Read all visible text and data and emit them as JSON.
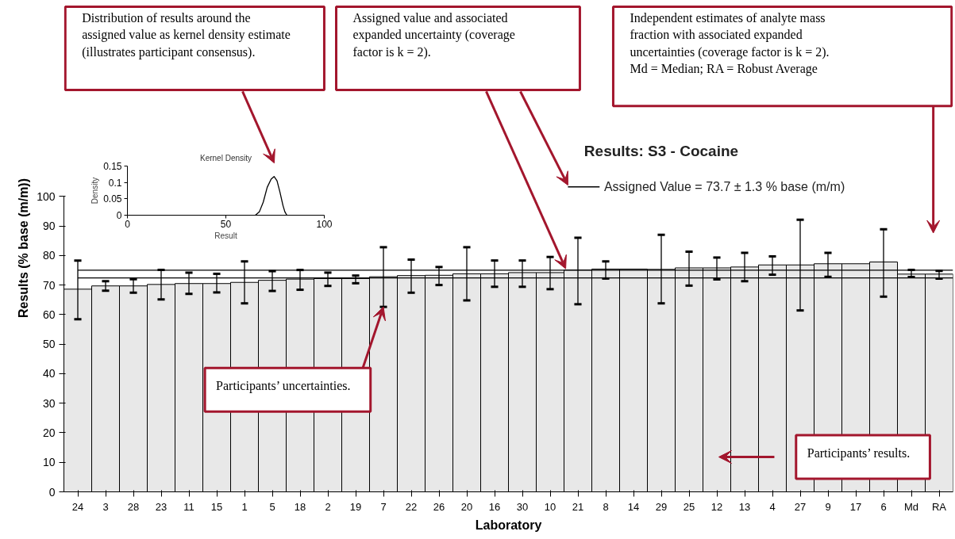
{
  "chart_data": [
    {
      "type": "bar",
      "title": "Results: S3 - Cocaine",
      "xlabel": "Laboratory",
      "ylabel": "Results (% base (m/m))",
      "categories": [
        "24",
        "3",
        "28",
        "23",
        "11",
        "15",
        "1",
        "5",
        "18",
        "2",
        "19",
        "7",
        "22",
        "26",
        "20",
        "16",
        "30",
        "10",
        "21",
        "8",
        "14",
        "29",
        "25",
        "12",
        "13",
        "4",
        "27",
        "9",
        "17",
        "6",
        "Md",
        "RA"
      ],
      "values": [
        68.6,
        69.7,
        69.7,
        70.2,
        70.5,
        70.5,
        70.9,
        71.6,
        72.0,
        72.2,
        72.2,
        72.8,
        73.2,
        73.3,
        73.8,
        73.8,
        74.2,
        74.2,
        75.1,
        75.4,
        75.4,
        75.3,
        75.8,
        75.8,
        76.1,
        76.8,
        76.8,
        77.2,
        77.2,
        77.8,
        73.7,
        73.7
      ],
      "errors": [
        [
          58.4,
          78.3
        ],
        [
          68.1,
          71.3
        ],
        [
          67.4,
          72.0
        ],
        [
          65.1,
          75.1
        ],
        [
          67.0,
          74.2
        ],
        [
          67.5,
          73.8
        ],
        [
          63.8,
          78.0
        ],
        [
          68.0,
          74.7
        ],
        [
          68.4,
          75.1
        ],
        [
          69.7,
          74.2
        ],
        [
          70.6,
          73.2
        ],
        [
          62.6,
          82.8
        ],
        [
          67.4,
          78.6
        ],
        [
          70.0,
          76.1
        ],
        [
          64.8,
          82.8
        ],
        [
          69.4,
          78.3
        ],
        [
          69.4,
          78.3
        ],
        [
          68.6,
          79.5
        ],
        [
          63.5,
          86.0
        ],
        [
          72.2,
          78.0
        ],
        null,
        [
          63.8,
          87.0
        ],
        [
          69.8,
          81.3
        ],
        [
          71.9,
          79.3
        ],
        [
          71.3,
          80.9
        ],
        [
          73.5,
          79.7
        ],
        [
          61.4,
          92.1
        ],
        [
          72.8,
          80.9
        ],
        null,
        [
          66.1,
          88.9
        ],
        [
          72.7,
          75.1
        ],
        [
          72.2,
          74.8
        ]
      ],
      "color": "#e8e8e8",
      "ylim": [
        0,
        100
      ],
      "yticks": [
        0,
        10,
        20,
        30,
        40,
        50,
        60,
        70,
        80,
        90,
        100
      ],
      "grid": false,
      "ref_lines": [
        {
          "axis": "y",
          "value": 72.4,
          "color": "#000000"
        },
        {
          "axis": "y",
          "value": 75.0,
          "color": "#000000"
        }
      ],
      "annotations": [
        "Distribution of results around the assigned value as kernel density estimate (illustrates participant consensus).",
        "Assigned value and associated expanded uncertainty (coverage factor is k = 2).",
        "Independent estimates of analyte mass fraction with associated expanded uncertainties (coverage factor is k = 2). Md = Median; RA = Robust Average",
        {
          "text": "Participants’ uncertainties.",
          "x": "7",
          "y": 62.6
        },
        "Participants’ results.",
        "Assigned Value = 73.7 ± 1.3 % base (m/m)"
      ]
    },
    {
      "type": "line",
      "title": "Kernel Density",
      "xlabel": "Result",
      "ylabel": "Density",
      "x": [
        65,
        67,
        69,
        71,
        73,
        74.5,
        76,
        77.5,
        79,
        80,
        81
      ],
      "values": [
        0,
        0.01,
        0.04,
        0.085,
        0.11,
        0.118,
        0.105,
        0.07,
        0.03,
        0.01,
        0
      ],
      "color": "#000000",
      "xlim": [
        0,
        100
      ],
      "xticks": [
        0,
        50,
        100
      ],
      "ylim": [
        0,
        0.15
      ],
      "yticks": [
        0,
        0.05,
        0.1,
        0.15
      ],
      "grid": false
    }
  ]
}
